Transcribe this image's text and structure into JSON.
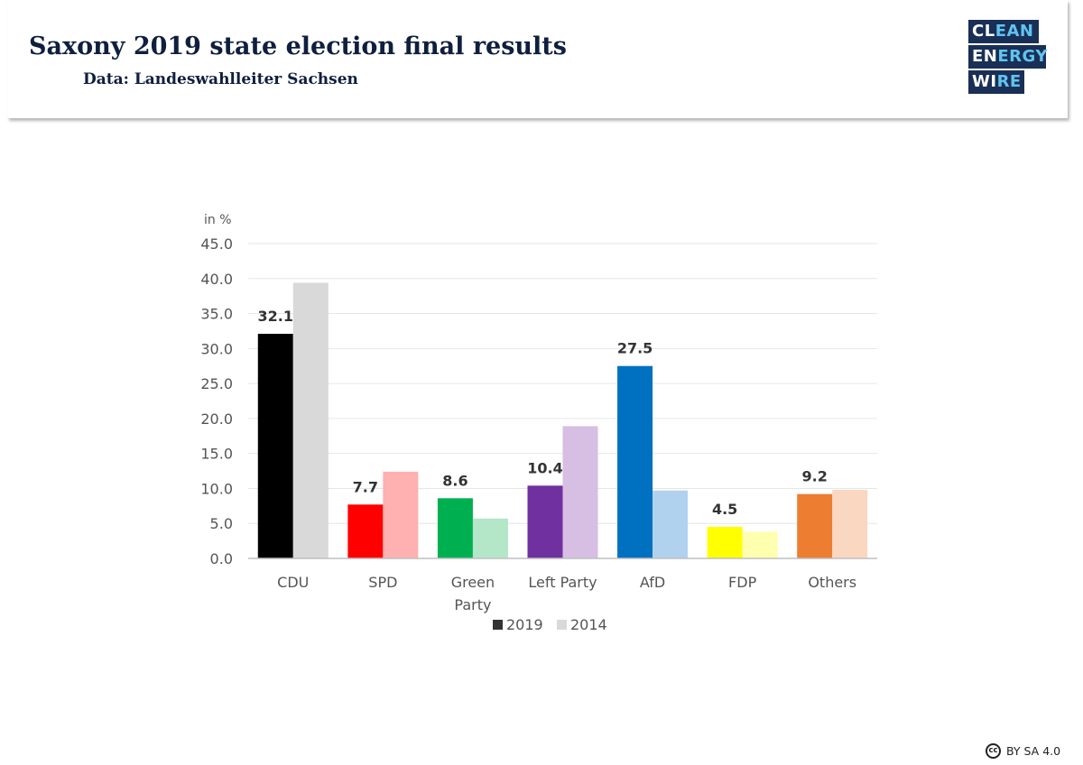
{
  "header": {
    "title": "Saxony 2019 state election final results",
    "subtitle": "Data: Landeswahlleiter Sachsen"
  },
  "logo": {
    "line1_a": "CL",
    "line1_b": "EAN",
    "line2_a": "EN",
    "line2_b": "ERGY",
    "line3_a": "WI",
    "line3_b": "RE",
    "colors": {
      "background": "#1a2f55",
      "accent": "#5fc4f0"
    }
  },
  "license": {
    "icon": "cc-icon",
    "icon_text": "cc",
    "text": "BY SA 4.0"
  },
  "chart_data": {
    "type": "bar",
    "title": "",
    "ylabel": "in %",
    "xlabel": "",
    "ylim": [
      0,
      45
    ],
    "yticks": [
      "0.0",
      "5.0",
      "10.0",
      "15.0",
      "20.0",
      "25.0",
      "30.0",
      "35.0",
      "40.0",
      "45.0"
    ],
    "grid": true,
    "legend_position": "bottom",
    "categories": [
      "CDU",
      "SPD",
      "Green Party",
      "Left Party",
      "AfD",
      "FDP",
      "Others"
    ],
    "category_lines": [
      [
        "CDU"
      ],
      [
        "SPD"
      ],
      [
        "Green",
        "Party"
      ],
      [
        "Left  Party"
      ],
      [
        "AfD"
      ],
      [
        "FDP"
      ],
      [
        "Others"
      ]
    ],
    "series": [
      {
        "name": "2019",
        "values": [
          32.1,
          7.7,
          8.6,
          10.4,
          27.5,
          4.5,
          9.2
        ],
        "labels": [
          "32.1",
          "7.7",
          "8.6",
          "10.4",
          "27.5",
          "4.5",
          "9.2"
        ],
        "colors": [
          "#000000",
          "#ff0000",
          "#00b050",
          "#7030a0",
          "#0070c0",
          "#ffff00",
          "#ed7d31"
        ],
        "legend_color": "#333333"
      },
      {
        "name": "2014",
        "values": [
          39.4,
          12.4,
          5.7,
          18.9,
          9.7,
          3.8,
          9.8
        ],
        "colors": [
          "#d9d9d9",
          "#ffb0b0",
          "#b4e6c8",
          "#d6bfe3",
          "#b0d2ee",
          "#ffffb0",
          "#fad7c0"
        ],
        "legend_color": "#d9d9d9"
      }
    ]
  }
}
